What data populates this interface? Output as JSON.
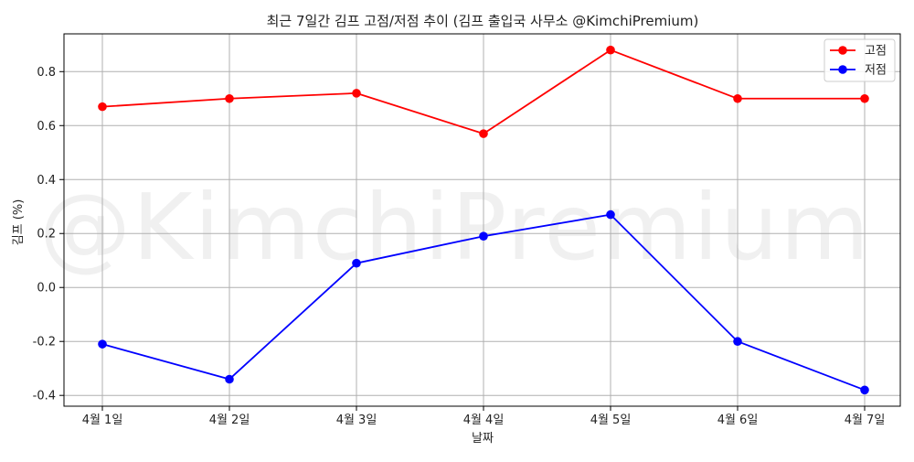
{
  "chart_data": {
    "type": "line",
    "title": "최근 7일간 김프 고점/저점 추이 (김프 출입국 사무소 @KimchiPremium)",
    "xlabel": "날짜",
    "ylabel": "김프 (%)",
    "categories": [
      "4월 1일",
      "4월 2일",
      "4월 3일",
      "4월 4일",
      "4월 5일",
      "4월 6일",
      "4월 7일"
    ],
    "ylim": [
      -0.44,
      0.94
    ],
    "yticks": [
      -0.4,
      -0.2,
      0.0,
      0.2,
      0.4,
      0.6,
      0.8
    ],
    "ytick_labels": [
      "-0.4",
      "-0.2",
      "0.0",
      "0.2",
      "0.4",
      "0.6",
      "0.8"
    ],
    "grid": true,
    "legend_position": "top-right",
    "watermark": "@KimchiPremium",
    "series": [
      {
        "name": "고점",
        "color": "#ff0000",
        "marker": "circle",
        "values": [
          0.67,
          0.7,
          0.72,
          0.57,
          0.88,
          0.7,
          0.7
        ]
      },
      {
        "name": "저점",
        "color": "#0000ff",
        "marker": "circle",
        "values": [
          -0.21,
          -0.34,
          0.09,
          0.19,
          0.27,
          -0.2,
          -0.38
        ]
      }
    ]
  }
}
